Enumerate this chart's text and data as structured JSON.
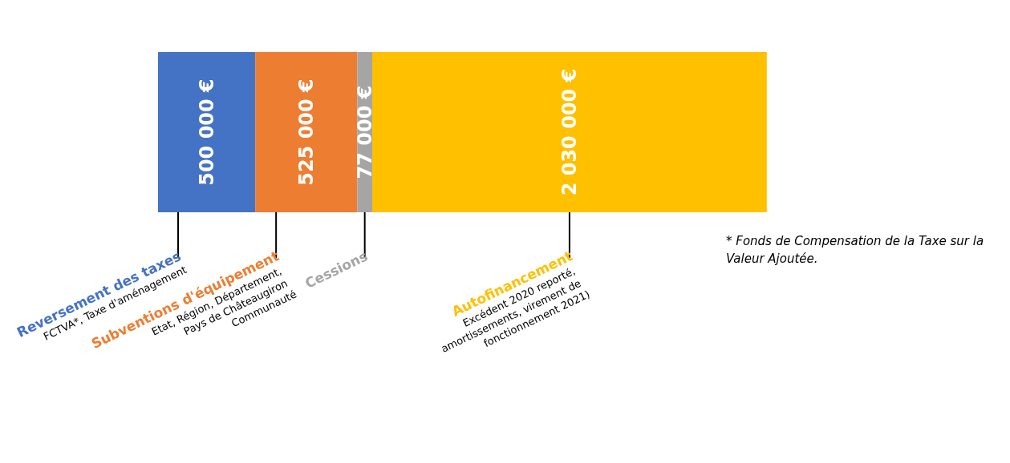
{
  "chart_data": {
    "type": "bar",
    "orientation": "horizontal",
    "stacked": true,
    "categories": [
      null
    ],
    "series": [
      {
        "name": "Reversement des taxes",
        "color": "#4472c4",
        "values": [
          500000
        ],
        "value_labels": [
          "500 000 €"
        ]
      },
      {
        "name": "Subventions d'équipement",
        "color": "#ed7d31",
        "values": [
          525000
        ],
        "value_labels": [
          "525 000 €"
        ]
      },
      {
        "name": "Cessions",
        "color": "#a5a5a5",
        "values": [
          77000
        ],
        "value_labels": [
          "77 000 €"
        ]
      },
      {
        "name": "Autofinancement",
        "color": "#ffc000",
        "values": [
          2030000
        ],
        "value_labels": [
          "2 030 000 €"
        ]
      }
    ],
    "annotations": [
      "FCTVA*, Taxe d'aménagement",
      "Etat, Région, Département, Pays de Châteaugiron Communauté",
      "Excédent 2020 reporté, amortissements, virement de fonctionnement 2021)",
      "* Fonds de Compensation de la Taxe sur la Valeur Ajoutée."
    ],
    "tick_labels": false
  }
}
